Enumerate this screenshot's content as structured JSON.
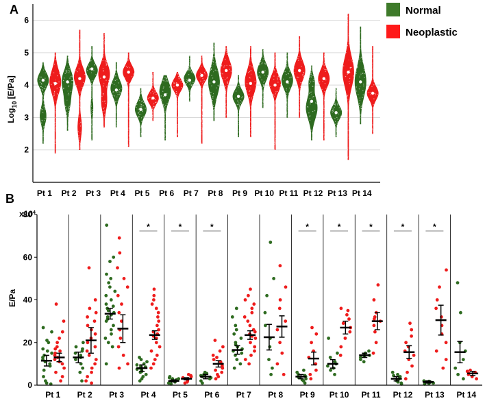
{
  "colors": {
    "normal": "#2e6b20",
    "neoplastic": "#ee1c1c",
    "normal_legend": "#3e7a2a",
    "neoplastic_legend": "#ff1a1a"
  },
  "legend": {
    "normal": "Normal",
    "neoplastic": "Neoplastic"
  },
  "panels": {
    "a": "A",
    "b": "B"
  },
  "chart_data": [
    {
      "type": "violin",
      "panel": "A",
      "ylabel_main": "Log",
      "ylabel_sub": "10",
      "ylabel_rest": " [E/Pa]",
      "ylim": [
        1,
        6.5
      ],
      "yticks": [
        2,
        3,
        4,
        5,
        6
      ],
      "grid": true,
      "legend_position": "top-right",
      "categories": [
        "Pt 1",
        "Pt 2",
        "Pt 3",
        "Pt 4",
        "Pt 5",
        "Pt 6",
        "Pt 7",
        "Pt 8",
        "Pt 9",
        "Pt 10",
        "Pt 11",
        "Pt 12",
        "Pt 13",
        "Pt 14"
      ],
      "violins": [
        {
          "cat": "Pt 1",
          "series": "Normal",
          "min": 2.2,
          "max": 4.7,
          "median": 4.15,
          "modes": [
            [
              4.15,
              0.22,
              1.0
            ],
            [
              3.05,
              0.25,
              0.55
            ]
          ]
        },
        {
          "cat": "Pt 1",
          "series": "Neoplastic",
          "min": 1.9,
          "max": 5.0,
          "median": 4.05,
          "modes": [
            [
              4.1,
              0.35,
              1.0
            ]
          ]
        },
        {
          "cat": "Pt 2",
          "series": "Normal",
          "min": 2.6,
          "max": 4.9,
          "median": 4.1,
          "modes": [
            [
              4.15,
              0.3,
              1.0
            ],
            [
              3.5,
              0.3,
              0.5
            ]
          ]
        },
        {
          "cat": "Pt 2",
          "series": "Neoplastic",
          "min": 2.0,
          "max": 5.7,
          "median": 4.2,
          "modes": [
            [
              4.25,
              0.28,
              1.0
            ],
            [
              2.7,
              0.3,
              0.35
            ]
          ]
        },
        {
          "cat": "Pt 3",
          "series": "Normal",
          "min": 2.3,
          "max": 5.2,
          "median": 4.5,
          "modes": [
            [
              4.45,
              0.2,
              1.0
            ],
            [
              3.3,
              0.25,
              0.2
            ]
          ]
        },
        {
          "cat": "Pt 3",
          "series": "Neoplastic",
          "min": 2.7,
          "max": 5.6,
          "median": 4.25,
          "modes": [
            [
              4.35,
              0.3,
              1.0
            ],
            [
              3.5,
              0.3,
              0.5
            ]
          ]
        },
        {
          "cat": "Pt 4",
          "series": "Normal",
          "min": 2.7,
          "max": 4.7,
          "median": 3.85,
          "modes": [
            [
              3.9,
              0.25,
              1.0
            ]
          ]
        },
        {
          "cat": "Pt 4",
          "series": "Neoplastic",
          "min": 2.1,
          "max": 5.0,
          "median": 4.4,
          "modes": [
            [
              4.4,
              0.2,
              1.0
            ]
          ]
        },
        {
          "cat": "Pt 5",
          "series": "Normal",
          "min": 2.4,
          "max": 3.9,
          "median": 3.25,
          "modes": [
            [
              3.25,
              0.22,
              1.0
            ]
          ]
        },
        {
          "cat": "Pt 5",
          "series": "Neoplastic",
          "min": 2.9,
          "max": 4.4,
          "median": 3.6,
          "modes": [
            [
              3.6,
              0.18,
              1.0
            ]
          ]
        },
        {
          "cat": "Pt 6",
          "series": "Normal",
          "min": 2.3,
          "max": 4.3,
          "median": 3.7,
          "modes": [
            [
              3.8,
              0.3,
              1.0
            ]
          ]
        },
        {
          "cat": "Pt 6",
          "series": "Neoplastic",
          "min": 2.4,
          "max": 4.4,
          "median": 4.0,
          "modes": [
            [
              4.0,
              0.18,
              1.0
            ]
          ]
        },
        {
          "cat": "Pt 7",
          "series": "Normal",
          "min": 3.5,
          "max": 4.9,
          "median": 4.15,
          "modes": [
            [
              4.2,
              0.18,
              1.0
            ]
          ]
        },
        {
          "cat": "Pt 7",
          "series": "Neoplastic",
          "min": 2.2,
          "max": 4.9,
          "median": 4.3,
          "modes": [
            [
              4.3,
              0.18,
              1.0
            ]
          ]
        },
        {
          "cat": "Pt 8",
          "series": "Normal",
          "min": 2.9,
          "max": 5.3,
          "median": 4.1,
          "modes": [
            [
              4.1,
              0.4,
              1.0
            ]
          ]
        },
        {
          "cat": "Pt 8",
          "series": "Neoplastic",
          "min": 3.0,
          "max": 5.2,
          "median": 4.45,
          "modes": [
            [
              4.45,
              0.3,
              1.0
            ]
          ]
        },
        {
          "cat": "Pt 9",
          "series": "Normal",
          "min": 2.4,
          "max": 4.3,
          "median": 3.65,
          "modes": [
            [
              3.65,
              0.2,
              1.0
            ]
          ]
        },
        {
          "cat": "Pt 9",
          "series": "Neoplastic",
          "min": 2.4,
          "max": 5.2,
          "median": 4.05,
          "modes": [
            [
              4.1,
              0.35,
              1.0
            ]
          ]
        },
        {
          "cat": "Pt 10",
          "series": "Normal",
          "min": 3.3,
          "max": 5.1,
          "median": 4.4,
          "modes": [
            [
              4.4,
              0.25,
              1.0
            ]
          ]
        },
        {
          "cat": "Pt 10",
          "series": "Neoplastic",
          "min": 2.0,
          "max": 5.0,
          "median": 4.0,
          "modes": [
            [
              4.05,
              0.25,
              1.0
            ]
          ]
        },
        {
          "cat": "Pt 11",
          "series": "Normal",
          "min": 3.0,
          "max": 5.0,
          "median": 4.1,
          "modes": [
            [
              4.15,
              0.25,
              1.0
            ]
          ]
        },
        {
          "cat": "Pt 11",
          "series": "Neoplastic",
          "min": 3.0,
          "max": 5.5,
          "median": 4.45,
          "modes": [
            [
              4.45,
              0.28,
              1.0
            ]
          ]
        },
        {
          "cat": "Pt 12",
          "series": "Normal",
          "min": 2.3,
          "max": 4.6,
          "median": 3.5,
          "modes": [
            [
              3.3,
              0.35,
              1.0
            ],
            [
              4.1,
              0.2,
              0.45
            ]
          ]
        },
        {
          "cat": "Pt 12",
          "series": "Neoplastic",
          "min": 2.3,
          "max": 5.0,
          "median": 4.2,
          "modes": [
            [
              4.2,
              0.25,
              1.0
            ]
          ]
        },
        {
          "cat": "Pt 13",
          "series": "Normal",
          "min": 2.4,
          "max": 3.9,
          "median": 3.15,
          "modes": [
            [
              3.15,
              0.2,
              1.0
            ]
          ]
        },
        {
          "cat": "Pt 13",
          "series": "Neoplastic",
          "min": 1.7,
          "max": 6.2,
          "median": 4.4,
          "modes": [
            [
              4.4,
              0.45,
              1.0
            ]
          ]
        },
        {
          "cat": "Pt 14",
          "series": "Normal",
          "min": 2.8,
          "max": 5.8,
          "median": 4.1,
          "modes": [
            [
              4.1,
              0.45,
              1.0
            ]
          ]
        },
        {
          "cat": "Pt 14",
          "series": "Neoplastic",
          "min": 2.5,
          "max": 5.2,
          "median": 3.75,
          "modes": [
            [
              3.75,
              0.2,
              1.0
            ]
          ]
        }
      ]
    },
    {
      "type": "scatter",
      "panel": "B",
      "ylabel": "E/Pa",
      "yscale_note": "x10",
      "yscale_exp": "4",
      "ylim": [
        0,
        80
      ],
      "yticks": [
        0,
        20,
        40,
        60,
        80
      ],
      "categories": [
        "Pt 1",
        "Pt 2",
        "Pt 3",
        "Pt 4",
        "Pt 5",
        "Pt 6",
        "Pt 7",
        "Pt 8",
        "Pt 9",
        "Pt 10",
        "Pt 11",
        "Pt 12",
        "Pt 13",
        "Pt 14"
      ],
      "significance_marker": "*",
      "significant": [
        false,
        false,
        false,
        true,
        true,
        true,
        false,
        false,
        true,
        true,
        true,
        true,
        true,
        false
      ],
      "series": [
        {
          "name": "Normal",
          "mean": [
            11.5,
            13,
            33.5,
            8,
            2,
            4,
            16.5,
            22.5,
            4,
            10,
            14,
            3,
            1.5,
            15.5
          ],
          "sem": [
            2.5,
            2.5,
            2.5,
            1.5,
            0.5,
            1,
            2,
            6,
            1,
            2,
            1,
            1,
            0.5,
            5
          ],
          "points": [
            [
              2,
              4,
              7,
              9,
              10,
              11,
              12,
              13,
              14,
              15,
              16,
              17,
              20,
              21,
              25,
              27,
              1,
              0.5
            ],
            [
              2,
              6,
              8,
              10,
              12,
              13,
              14,
              15,
              16,
              17,
              18,
              20
            ],
            [
              10,
              18,
              20,
              22,
              24,
              26,
              28,
              30,
              31,
              32,
              33,
              34,
              35,
              36,
              37,
              38,
              40,
              42,
              44,
              46,
              48,
              50,
              52,
              58,
              60,
              75
            ],
            [
              2,
              3,
              4,
              5,
              6,
              6.5,
              7,
              7.5,
              8,
              8.5,
              9,
              9.5,
              10,
              11,
              12,
              13
            ],
            [
              0.5,
              1,
              1.5,
              2,
              2,
              2.5,
              2.5,
              3,
              3,
              3.5,
              4
            ],
            [
              1,
              2,
              3,
              3.5,
              4,
              4.5,
              5,
              5.5,
              6
            ],
            [
              8,
              10,
              12,
              14,
              15,
              16,
              17,
              18,
              19,
              20,
              22,
              24,
              26,
              28,
              32,
              36
            ],
            [
              5,
              8,
              12,
              18,
              22,
              28,
              34,
              42,
              50,
              67
            ],
            [
              1,
              2,
              2.5,
              3,
              3.5,
              4,
              4.5,
              5,
              6,
              7
            ],
            [
              5,
              7,
              8,
              9,
              10,
              11,
              13,
              15,
              22
            ],
            [
              11,
              12,
              13,
              13.5,
              14,
              14.5,
              15,
              16
            ],
            [
              0.5,
              1,
              1.5,
              2,
              2.5,
              3,
              3.5,
              4,
              4.5,
              5,
              6
            ],
            [
              0.5,
              0.8,
              1,
              1.2,
              1.5,
              1.8,
              2
            ],
            [
              3,
              5,
              8,
              12,
              16,
              20,
              34,
              48
            ]
          ]
        },
        {
          "name": "Neoplastic",
          "mean": [
            13,
            21,
            26.5,
            23.5,
            3,
            10,
            23.5,
            27.5,
            12.5,
            27,
            30,
            15.5,
            30.5,
            5.5
          ],
          "sem": [
            2,
            6,
            6.5,
            2,
            0.5,
            1.5,
            2,
            5,
            3,
            3,
            4,
            3,
            7,
            1
          ],
          "points": [
            [
              2,
              4,
              6,
              8,
              10,
              11,
              12,
              13,
              14,
              15,
              16,
              17,
              18,
              20,
              22,
              25,
              30,
              38
            ],
            [
              1,
              2,
              4,
              6,
              8,
              10,
              12,
              14,
              16,
              18,
              20,
              22,
              24,
              26,
              28,
              30,
              32,
              34,
              36,
              40,
              55
            ],
            [
              8,
              10,
              14,
              18,
              22,
              26,
              30,
              34,
              38,
              42,
              46,
              50,
              55,
              62,
              69
            ],
            [
              8,
              10,
              12,
              14,
              16,
              18,
              20,
              22,
              23,
              24,
              25,
              26,
              28,
              30,
              32,
              34,
              36,
              38,
              40,
              42,
              45
            ],
            [
              1,
              1.5,
              2,
              2.5,
              3,
              3.5,
              4,
              4.5,
              5
            ],
            [
              3,
              4,
              5,
              6,
              7,
              8,
              9,
              10,
              11,
              12,
              13,
              14,
              16,
              18,
              21
            ],
            [
              10,
              12,
              14,
              16,
              18,
              20,
              22,
              23,
              24,
              25,
              26,
              28,
              30,
              32,
              34,
              36,
              38,
              40,
              42,
              45
            ],
            [
              5,
              10,
              15,
              20,
              26,
              30,
              36,
              40,
              46,
              56
            ],
            [
              3,
              5,
              7,
              10,
              13,
              16,
              20,
              24,
              27
            ],
            [
              14,
              18,
              22,
              25,
              27,
              29,
              31,
              33,
              35,
              36
            ],
            [
              15,
              20,
              25,
              28,
              30,
              31,
              32,
              34,
              40,
              47
            ],
            [
              3,
              6,
              9,
              12,
              14,
              16,
              18,
              20,
              23,
              26,
              29
            ],
            [
              8,
              12,
              16,
              20,
              24,
              28,
              32,
              36,
              40,
              46,
              54
            ],
            [
              3,
              4,
              5,
              5.5,
              6,
              6.5,
              7
            ]
          ]
        }
      ]
    }
  ]
}
